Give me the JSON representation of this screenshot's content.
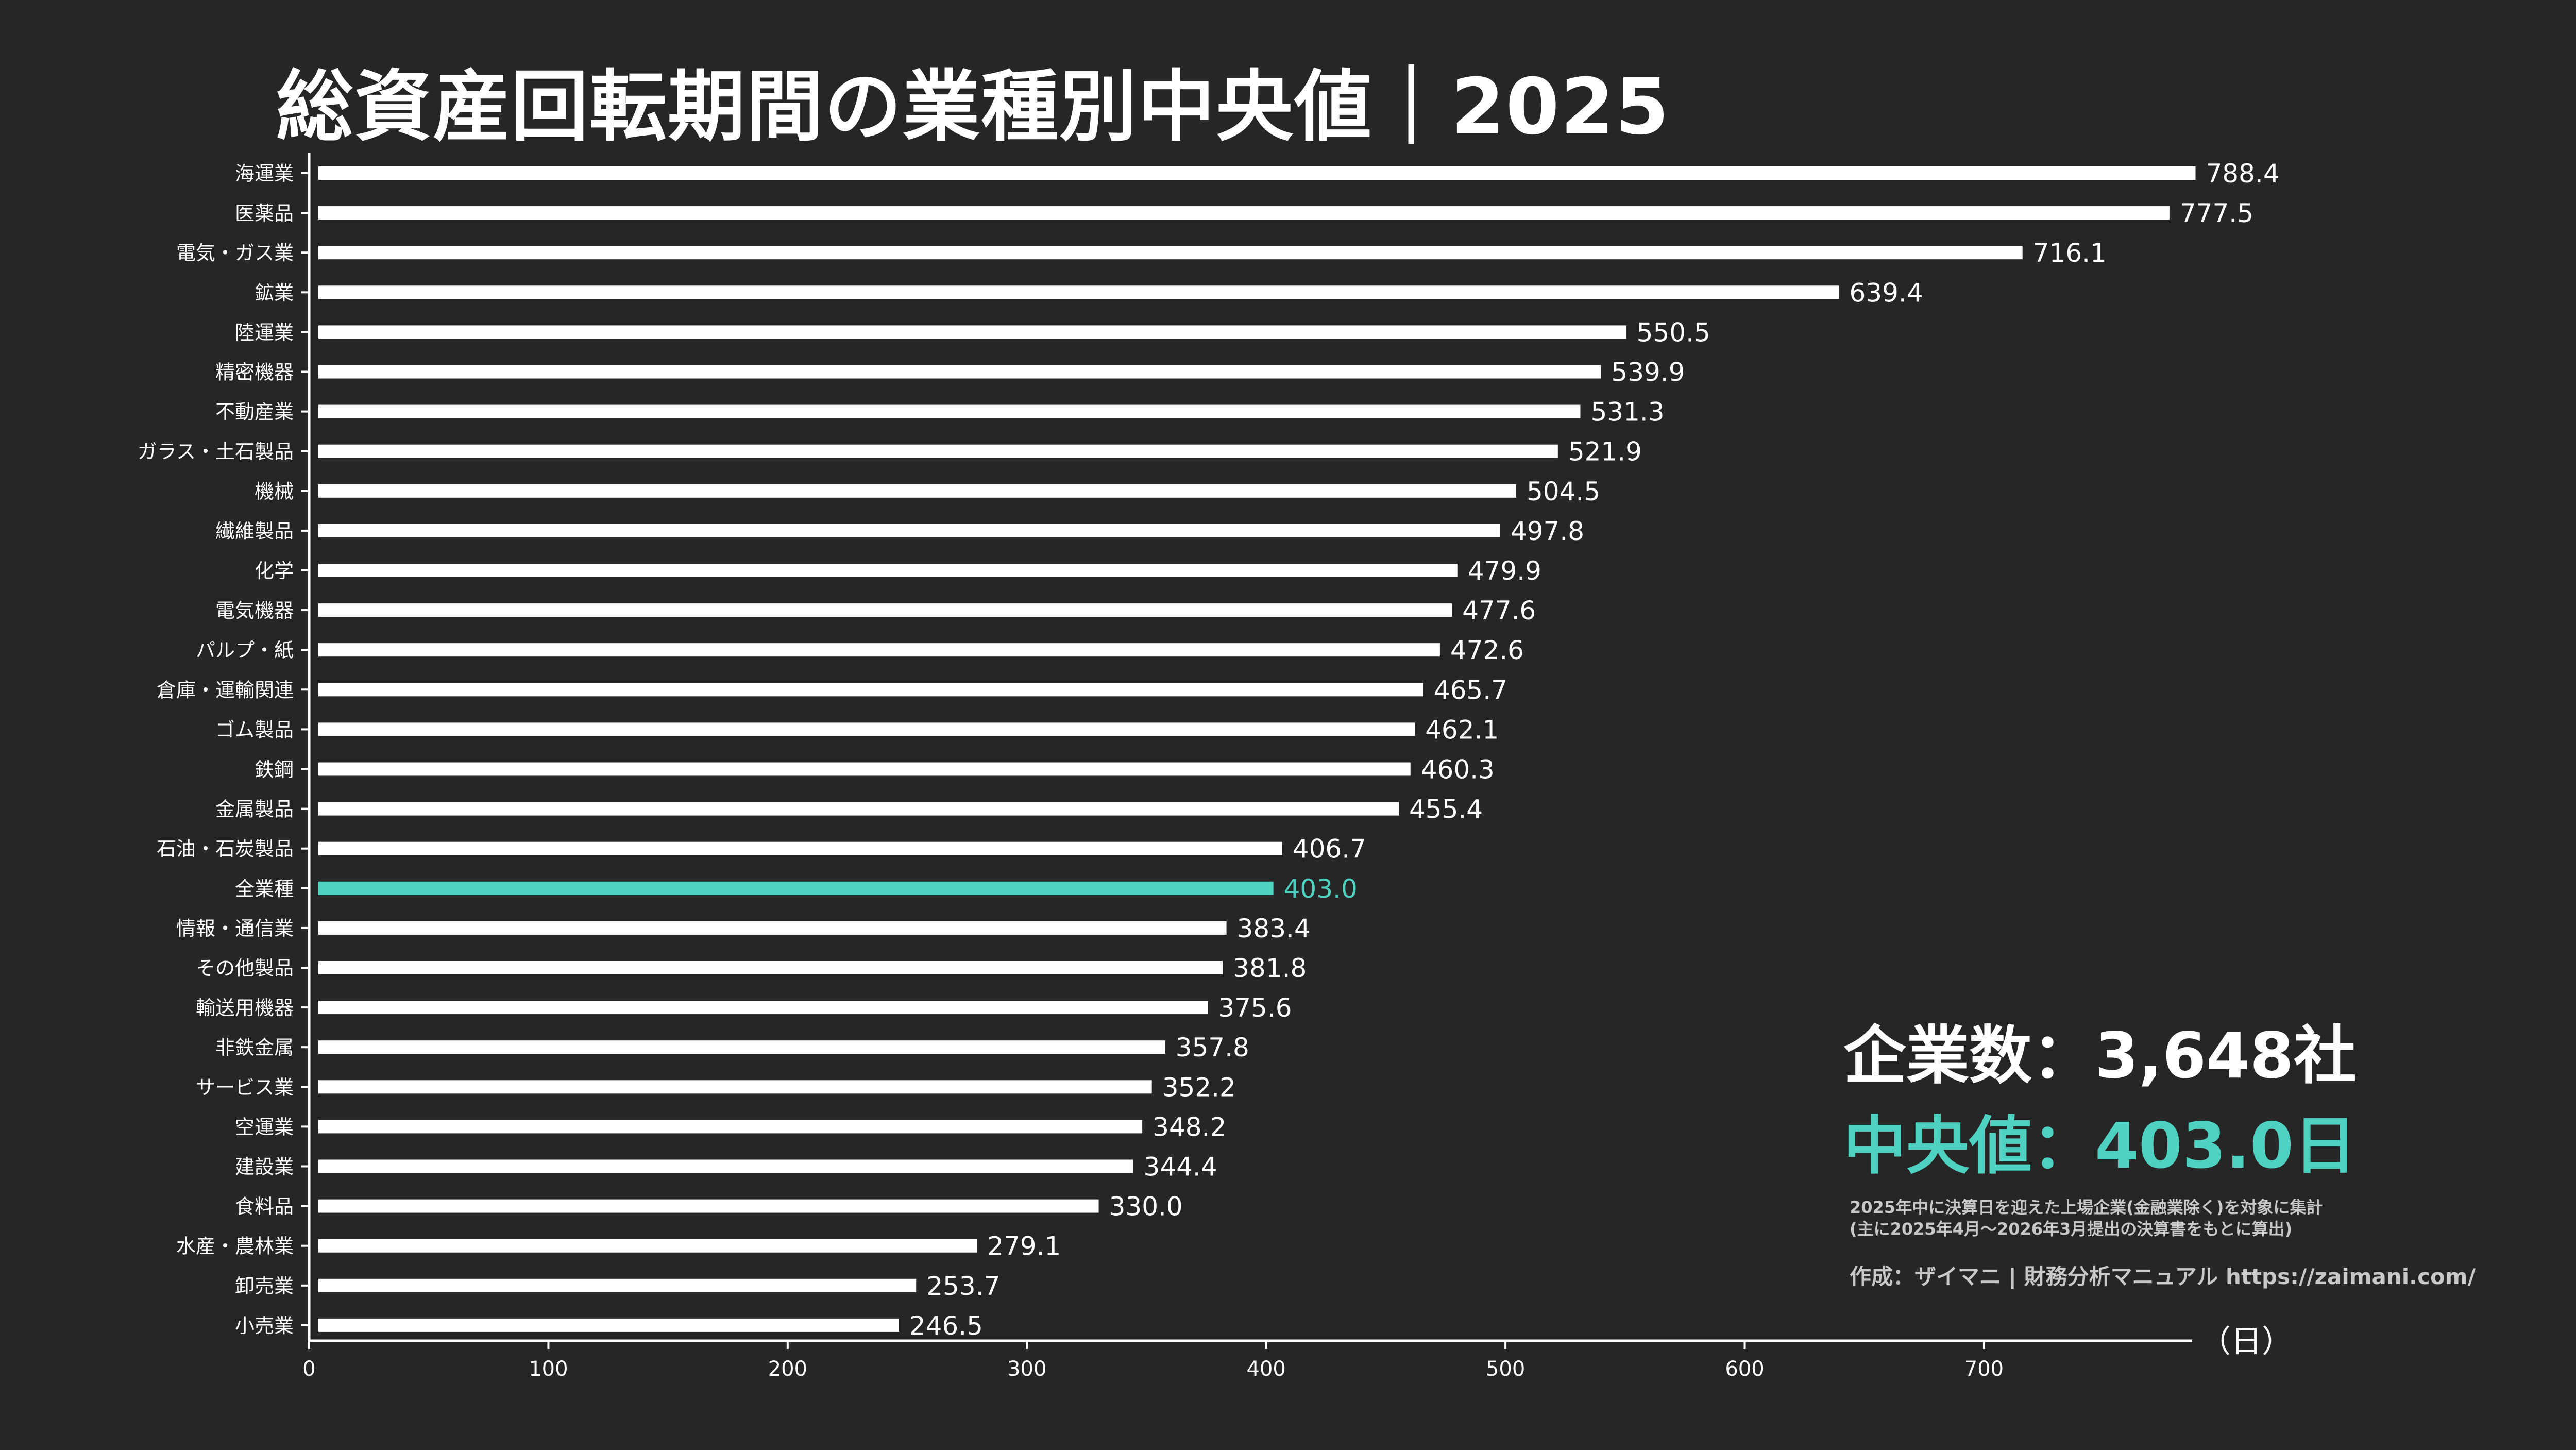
{
  "title": "総資産回転期間の業種別中央値｜2025",
  "stats": {
    "count_label": "企業数：3,648社",
    "median_label": "中央値：403.0日"
  },
  "notes": {
    "line1": "2025年中に決算日を迎えた上場企業(金融業除く)を対象に集計",
    "line2": "(主に2025年4月～2026年3月提出の決算書をもとに算出)"
  },
  "credit": "作成：ザイマニ | 財務分析マニュアル https://zaimani.com/",
  "colors": {
    "background": "#262626",
    "bar": "#ffffff",
    "highlight": "#4fd1c1",
    "axis": "#ffffff"
  },
  "chart_data": {
    "type": "bar",
    "orientation": "horizontal",
    "title": "総資産回転期間の業種別中央値｜2025",
    "x_unit_label": "（日）",
    "xlim": [
      0,
      787
    ],
    "x_ticks": [
      0,
      100,
      200,
      300,
      400,
      500,
      600,
      700
    ],
    "grid": false,
    "highlight_category": "全業種",
    "categories": [
      "海運業",
      "医薬品",
      "電気・ガス業",
      "鉱業",
      "陸運業",
      "精密機器",
      "不動産業",
      "ガラス・土石製品",
      "機械",
      "繊維製品",
      "化学",
      "電気機器",
      "パルプ・紙",
      "倉庫・運輸関連",
      "ゴム製品",
      "鉄鋼",
      "金属製品",
      "石油・石炭製品",
      "全業種",
      "情報・通信業",
      "その他製品",
      "輸送用機器",
      "非鉄金属",
      "サービス業",
      "空運業",
      "建設業",
      "食料品",
      "水産・農林業",
      "卸売業",
      "小売業"
    ],
    "values": [
      788.4,
      777.5,
      716.1,
      639.4,
      550.5,
      539.9,
      531.3,
      521.9,
      504.5,
      497.8,
      479.9,
      477.6,
      472.6,
      465.7,
      462.1,
      460.3,
      455.4,
      406.7,
      403.0,
      383.4,
      381.8,
      375.6,
      357.8,
      352.2,
      348.2,
      344.4,
      330.0,
      279.1,
      253.7,
      246.5
    ],
    "value_labels": [
      "788.4",
      "777.5",
      "716.1",
      "639.4",
      "550.5",
      "539.9",
      "531.3",
      "521.9",
      "504.5",
      "497.8",
      "479.9",
      "477.6",
      "472.6",
      "465.7",
      "462.1",
      "460.3",
      "455.4",
      "406.7",
      "403.0",
      "383.4",
      "381.8",
      "375.6",
      "357.8",
      "352.2",
      "348.2",
      "344.4",
      "330.0",
      "279.1",
      "253.7",
      "246.5"
    ]
  }
}
